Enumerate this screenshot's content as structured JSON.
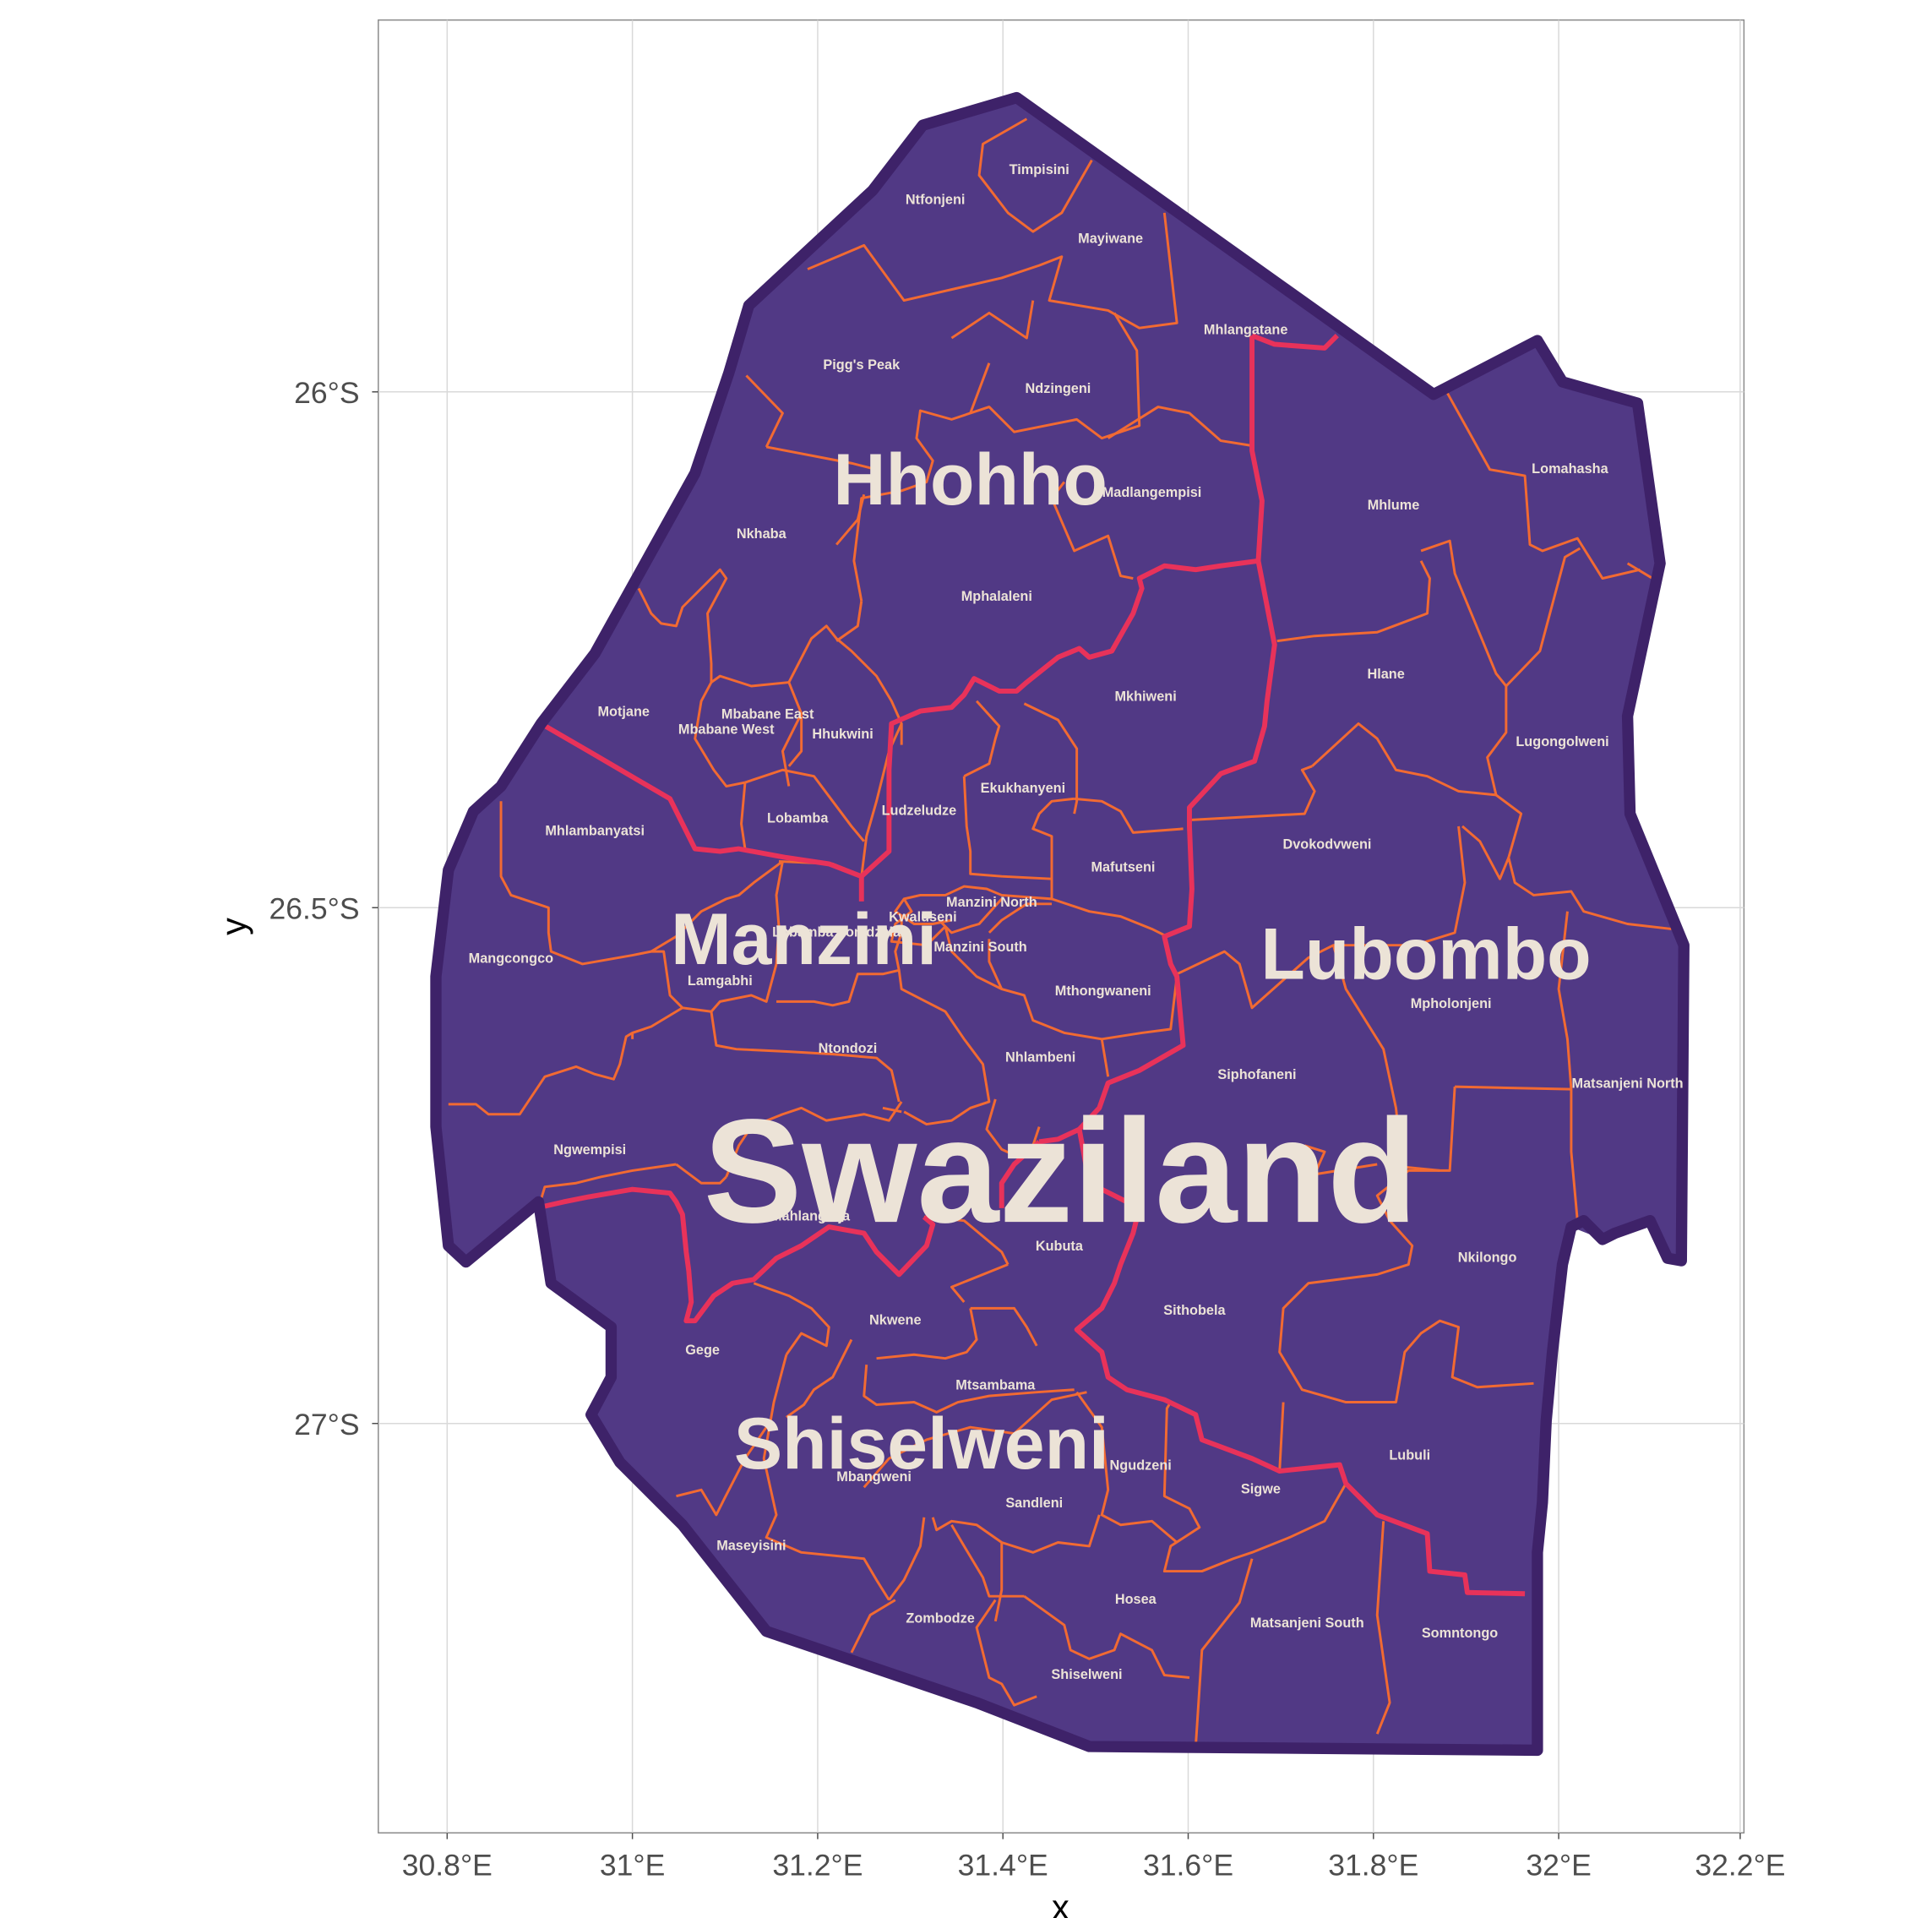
{
  "axes": {
    "x_label": "x",
    "y_label": "y",
    "x_ticks": [
      "30.8°E",
      "31°E",
      "31.2°E",
      "31.4°E",
      "31.6°E",
      "31.8°E",
      "32°E",
      "32.2°E"
    ],
    "y_ticks": [
      "26°S",
      "26.5°S",
      "27°S"
    ]
  },
  "colors": {
    "fill": "#513985",
    "country_border": "#3e2269",
    "region_border": "#e8325a",
    "inkhundla_border": "#f26a32",
    "label": "#ece3d7"
  },
  "country": {
    "name": "Swaziland"
  },
  "regions": [
    {
      "name": "Hhohho"
    },
    {
      "name": "Manzini"
    },
    {
      "name": "Lubombo"
    },
    {
      "name": "Shiselweni"
    }
  ],
  "tinkhundla": [
    "Timpisini",
    "Ntfonjeni",
    "Mayiwane",
    "Mhlangatane",
    "Pigg's Peak",
    "Ndzingeni",
    "Madlangempisi",
    "Lomahasha",
    "Mhlume",
    "Nkhaba",
    "Mphalaleni",
    "Mkhiweni",
    "Hlane",
    "Motjane",
    "Mbabane East",
    "Mbabane West",
    "Hhukwini",
    "Lugongolweni",
    "Ekukhanyeni",
    "Ludzeludze",
    "Lobamba",
    "Dvokodvweni",
    "Mafutseni",
    "Mhlambanyatsi",
    "Manzini North",
    "Kwaluseni",
    "Lobamba Lomdzala",
    "Manzini South",
    "Mangcongco",
    "Lamgabhi",
    "Mthongwaneni",
    "Mpholonjeni",
    "Ntondozi",
    "Nhlambeni",
    "Siphofaneni",
    "Matsanjeni North",
    "Ngwempisi",
    "Mahlangatja",
    "Kubuta",
    "Nkilongo",
    "Sithobela",
    "Nkwene",
    "Gege",
    "Mtsambama",
    "Lubuli",
    "Ngudzeni",
    "Mbangweni",
    "Sigwe",
    "Sandleni",
    "Maseyisini",
    "Hosea",
    "Zombodze",
    "Matsanjeni South",
    "Somntongo",
    "Shiselweni"
  ]
}
